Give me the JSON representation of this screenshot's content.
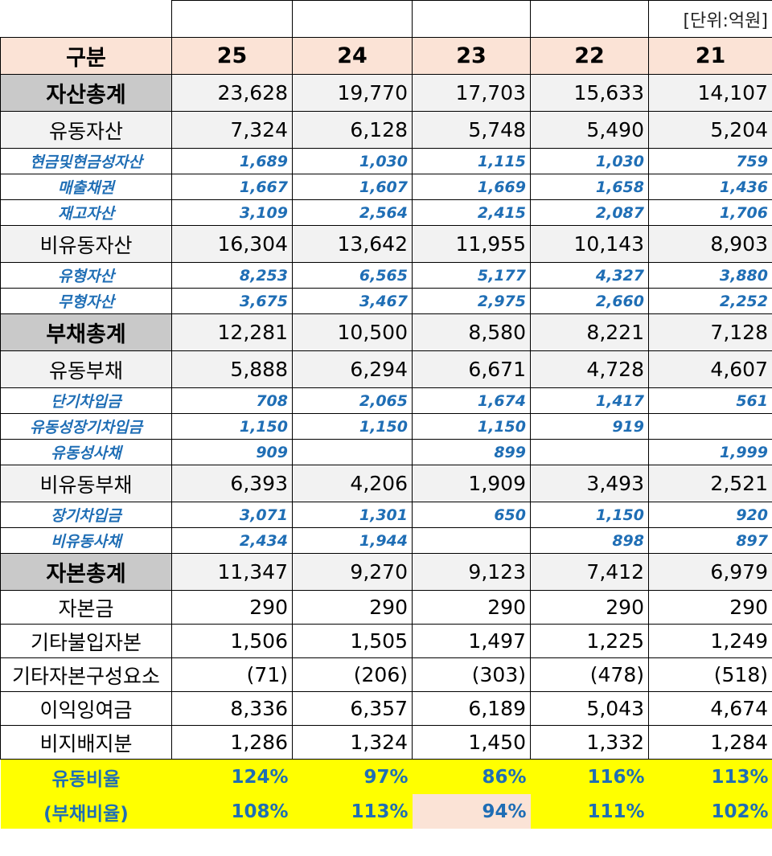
{
  "unit_label": "[단위:억원]",
  "header": {
    "label": "구분",
    "years": [
      "25",
      "24",
      "23",
      "22",
      "21"
    ]
  },
  "rows": [
    {
      "label": "자산총계",
      "values": [
        "23,628",
        "19,770",
        "17,703",
        "15,633",
        "14,107"
      ]
    },
    {
      "label": "유동자산",
      "values": [
        "7,324",
        "6,128",
        "5,748",
        "5,490",
        "5,204"
      ]
    },
    {
      "label": "현금및현금성자산",
      "values": [
        "1,689",
        "1,030",
        "1,115",
        "1,030",
        "759"
      ]
    },
    {
      "label": "매출채권",
      "values": [
        "1,667",
        "1,607",
        "1,669",
        "1,658",
        "1,436"
      ]
    },
    {
      "label": "재고자산",
      "values": [
        "3,109",
        "2,564",
        "2,415",
        "2,087",
        "1,706"
      ]
    },
    {
      "label": "비유동자산",
      "values": [
        "16,304",
        "13,642",
        "11,955",
        "10,143",
        "8,903"
      ]
    },
    {
      "label": "유형자산",
      "values": [
        "8,253",
        "6,565",
        "5,177",
        "4,327",
        "3,880"
      ]
    },
    {
      "label": "무형자산",
      "values": [
        "3,675",
        "3,467",
        "2,975",
        "2,660",
        "2,252"
      ]
    },
    {
      "label": "부채총계",
      "values": [
        "12,281",
        "10,500",
        "8,580",
        "8,221",
        "7,128"
      ]
    },
    {
      "label": "유동부채",
      "values": [
        "5,888",
        "6,294",
        "6,671",
        "4,728",
        "4,607"
      ]
    },
    {
      "label": "단기차입금",
      "values": [
        "708",
        "2,065",
        "1,674",
        "1,417",
        "561"
      ]
    },
    {
      "label": "유동성장기차입금",
      "values": [
        "1,150",
        "1,150",
        "1,150",
        "919",
        ""
      ]
    },
    {
      "label": "유동성사채",
      "values": [
        "909",
        "",
        "899",
        "",
        "1,999"
      ]
    },
    {
      "label": "비유동부채",
      "values": [
        "6,393",
        "4,206",
        "1,909",
        "3,493",
        "2,521"
      ]
    },
    {
      "label": "장기차입금",
      "values": [
        "3,071",
        "1,301",
        "650",
        "1,150",
        "920"
      ]
    },
    {
      "label": "비유동사채",
      "values": [
        "2,434",
        "1,944",
        "",
        "898",
        "897"
      ]
    },
    {
      "label": "자본총계",
      "values": [
        "11,347",
        "9,270",
        "9,123",
        "7,412",
        "6,979"
      ]
    },
    {
      "label": "자본금",
      "values": [
        "290",
        "290",
        "290",
        "290",
        "290"
      ]
    },
    {
      "label": "기타불입자본",
      "values": [
        "1,506",
        "1,505",
        "1,497",
        "1,225",
        "1,249"
      ]
    },
    {
      "label": "기타자본구성요소",
      "values": [
        "(71)",
        "(206)",
        "(303)",
        "(478)",
        "(518)"
      ]
    },
    {
      "label": "이익잉여금",
      "values": [
        "8,336",
        "6,357",
        "6,189",
        "5,043",
        "4,674"
      ]
    },
    {
      "label": "비지배지분",
      "values": [
        "1,286",
        "1,324",
        "1,450",
        "1,332",
        "1,284"
      ]
    },
    {
      "label": "유동비율",
      "values": [
        "124%",
        "97%",
        "86%",
        "116%",
        "113%"
      ]
    },
    {
      "label": "(부채비율)",
      "values": [
        "108%",
        "113%",
        "94%",
        "111%",
        "102%"
      ]
    }
  ],
  "colors": {
    "header_bg": "#fbe3d6",
    "total_bg": "#c9c9c9",
    "sub_bg": "#f2f2f2",
    "detail_text": "#1f6eb5",
    "ratio_bg": "#ffff00"
  }
}
